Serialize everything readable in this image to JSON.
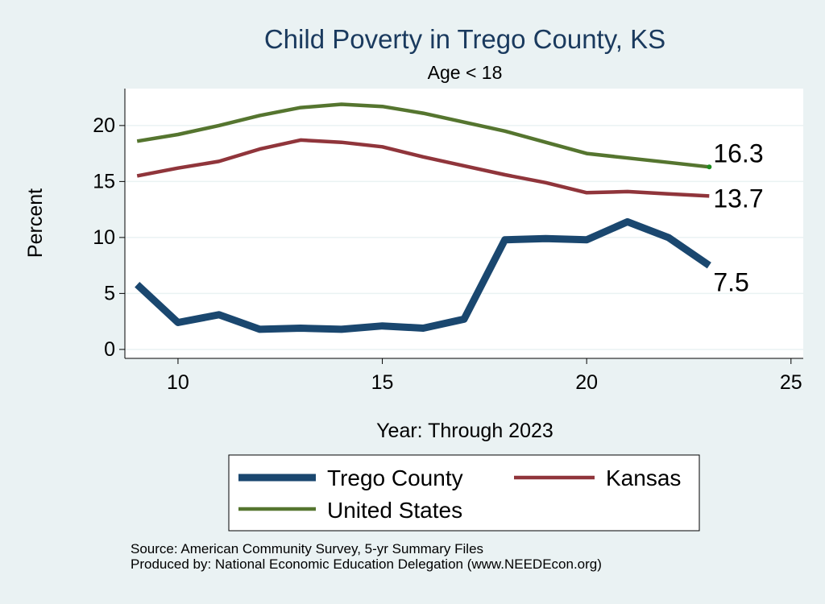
{
  "chart_data": {
    "type": "line",
    "title": "Child Poverty in Trego County, KS",
    "subtitle": "Age < 18",
    "xlabel": "Year: Through 2023",
    "ylabel": "Percent",
    "xlim": [
      8.7,
      25.3
    ],
    "ylim": [
      -0.8,
      23.3
    ],
    "xticks": [
      10,
      15,
      20,
      25
    ],
    "yticks": [
      0,
      5,
      10,
      15,
      20
    ],
    "x": [
      9,
      10,
      11,
      12,
      13,
      14,
      15,
      16,
      17,
      18,
      19,
      20,
      21,
      22,
      23
    ],
    "series": [
      {
        "name": "Trego County",
        "color": "#1a476f",
        "values": [
          5.8,
          2.4,
          3.1,
          1.8,
          1.9,
          1.8,
          2.1,
          1.9,
          2.7,
          9.8,
          9.9,
          9.8,
          11.4,
          10.0,
          7.5
        ],
        "end_label": "7.5"
      },
      {
        "name": "Kansas",
        "color": "#90353b",
        "values": [
          15.5,
          16.2,
          16.8,
          17.9,
          18.7,
          18.5,
          18.1,
          17.2,
          16.4,
          15.6,
          14.9,
          14.0,
          14.1,
          13.9,
          13.7
        ],
        "end_label": "13.7"
      },
      {
        "name": "United States",
        "color": "#55752f",
        "values": [
          18.6,
          19.2,
          20.0,
          20.9,
          21.6,
          21.9,
          21.7,
          21.1,
          20.3,
          19.5,
          18.5,
          17.5,
          17.1,
          16.7,
          16.3
        ],
        "end_label": "16.3"
      }
    ],
    "grid": true,
    "legend": "bottom-center"
  },
  "notes": {
    "source": "Source: American Community Survey, 5-yr Summary Files",
    "produced_by": "Produced by: National Economic Education Delegation (www.NEEDEcon.org)"
  }
}
